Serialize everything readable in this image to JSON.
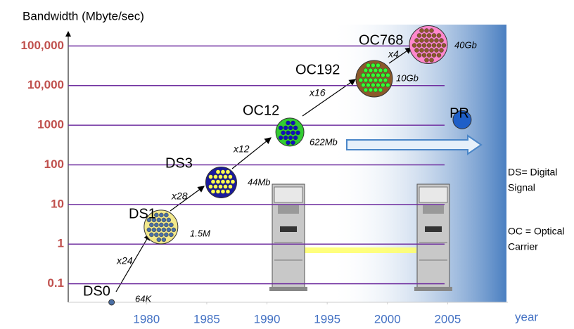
{
  "chart_data": {
    "type": "scatter",
    "y_label": "Bandwidth (Mbyte/sec)",
    "x_label": "year",
    "log_y": true,
    "grid": true,
    "x": [
      1977.1,
      1981.2,
      1986.2,
      1991.9,
      1998.9,
      2003.4,
      2006.2
    ],
    "values": [
      0.034,
      2.7,
      36,
      670,
      14900,
      108000,
      1380
    ],
    "point_labels": [
      "DS0",
      "DS1",
      "DS3",
      "OC12",
      "OC192",
      "OC768",
      "PR"
    ],
    "colors": [
      "#4a6fa5",
      "#f2e88c",
      "#1a1a9c",
      "#33cc33",
      "#8b5a2b",
      "#ff88cc",
      "#1f5fc8"
    ],
    "dot_colors": [
      "#4a6fa5",
      "#4a6fa5",
      "#ffff55",
      "#1010c0",
      "#33ff33",
      "#8b5a2b",
      "#1f5fc8"
    ],
    "xlim": [
      1973.5,
      2010
    ],
    "ylim": [
      0.034,
      230000
    ],
    "xticks": [
      1980,
      1985,
      1990,
      1995,
      2000,
      2005
    ],
    "yticks": [
      0.1,
      1,
      10,
      100,
      1000,
      {
        "value": 10000,
        "label": "10,000"
      },
      {
        "value": 100000,
        "label": "100,000"
      }
    ],
    "rate_labels": [
      "64K",
      "1.5M",
      "44Mb",
      "622Mb",
      "10Gb",
      "40Gb"
    ],
    "multipliers": [
      "x24",
      "x28",
      "x12",
      "x16",
      "x4"
    ],
    "notes": [
      "DS= Digital",
      "Signal",
      "OC = Optical",
      "Carrier"
    ]
  }
}
